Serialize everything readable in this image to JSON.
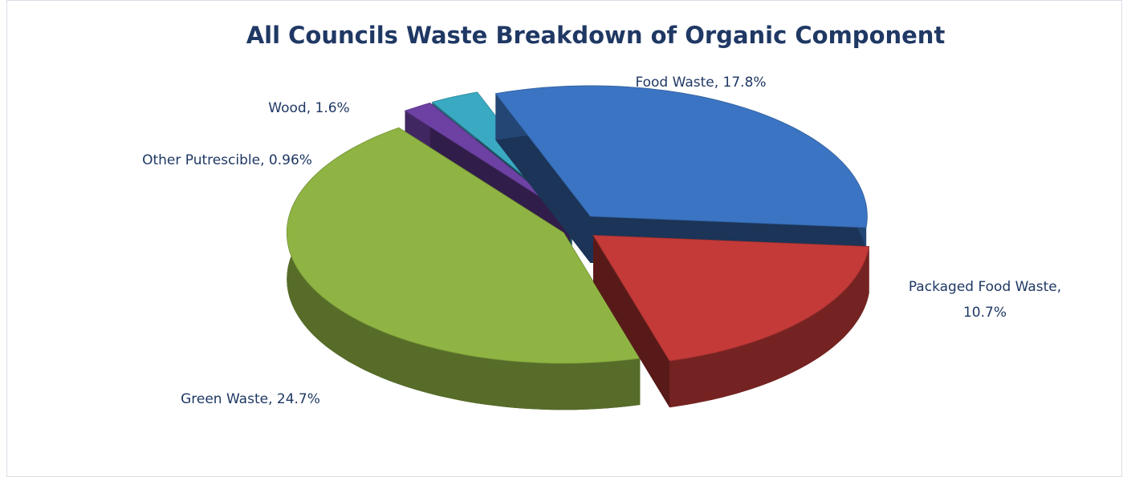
{
  "chart_data": {
    "type": "pie",
    "title": "All Councils Waste Breakdown of Organic Component",
    "labels": [
      [
        "Food Waste, 17.8%"
      ],
      [
        "Packaged Food Waste,",
        "10.7%"
      ],
      [
        "Green Waste, 24.7%"
      ],
      [
        "Other Putrescible, 0.96%"
      ],
      [
        "Wood, 1.6%"
      ]
    ],
    "values": [
      17.8,
      10.7,
      24.7,
      0.96,
      1.6
    ],
    "colors": [
      "#3b74c2",
      "#c33a38",
      "#8fb443",
      "#6c41a3",
      "#3aa9c2"
    ]
  }
}
